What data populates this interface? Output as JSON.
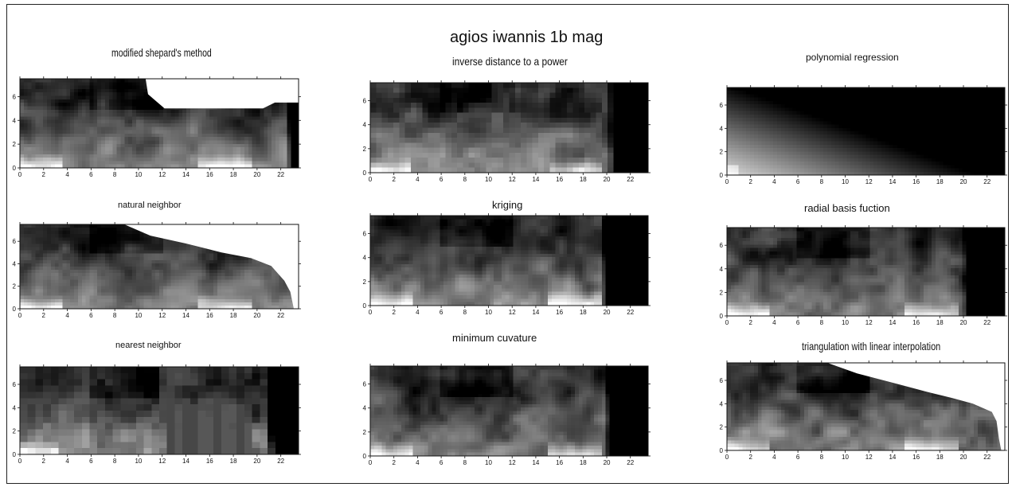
{
  "figure": {
    "title": "agios iwannis 1b mag",
    "top_text_fragment": "",
    "colors": {
      "low": "#000000",
      "high": "#ffffff",
      "text": "#111111",
      "top_fragment": "#d11a1a"
    }
  },
  "chart_data": [
    {
      "type": "heatmap",
      "id": "shepard",
      "title": "modified shepard's method",
      "xlim": [
        0,
        23.5
      ],
      "ylim": [
        0,
        7.5
      ],
      "xticks": [
        0,
        2,
        4,
        6,
        8,
        10,
        12,
        14,
        16,
        18,
        20,
        22
      ],
      "yticks": [
        0,
        2,
        4,
        6
      ],
      "blank_region": "upper-right notch (x 10.5-22, y 5-7.5) and right edge",
      "grid": false
    },
    {
      "type": "heatmap",
      "id": "idw",
      "title": "inverse distance to a power",
      "xlim": [
        0,
        23.5
      ],
      "ylim": [
        0,
        7.5
      ],
      "xticks": [
        0,
        2,
        4,
        6,
        8,
        10,
        12,
        14,
        16,
        18,
        20,
        22
      ],
      "yticks": [
        0,
        2,
        4,
        6
      ],
      "grid": false
    },
    {
      "type": "heatmap",
      "id": "polyreg",
      "title": "polynomial regression",
      "xlim": [
        0,
        23.5
      ],
      "ylim": [
        0,
        7.5
      ],
      "xticks": [
        0,
        2,
        4,
        6,
        8,
        10,
        12,
        14,
        16,
        18,
        20,
        22
      ],
      "yticks": [
        0,
        2,
        4,
        6
      ],
      "gradient": "linear, bright lower-left to dark upper-right",
      "grid": false
    },
    {
      "type": "heatmap",
      "id": "natneigh",
      "title": "natural neighbor",
      "xlim": [
        0,
        23.5
      ],
      "ylim": [
        0,
        7.5
      ],
      "xticks": [
        0,
        2,
        4,
        6,
        8,
        10,
        12,
        14,
        16,
        18,
        20,
        22
      ],
      "yticks": [
        0,
        2,
        4,
        6
      ],
      "blank_region": "upper-right triangle outside convex hull",
      "grid": false
    },
    {
      "type": "heatmap",
      "id": "kriging",
      "title": "kriging",
      "xlim": [
        0,
        23.5
      ],
      "ylim": [
        0,
        7.5
      ],
      "xticks": [
        0,
        2,
        4,
        6,
        8,
        10,
        12,
        14,
        16,
        18,
        20,
        22
      ],
      "yticks": [
        0,
        2,
        4,
        6
      ],
      "grid": false
    },
    {
      "type": "heatmap",
      "id": "rbf",
      "title": "radial basis fuction",
      "xlim": [
        0,
        23.5
      ],
      "ylim": [
        0,
        7.5
      ],
      "xticks": [
        0,
        2,
        4,
        6,
        8,
        10,
        12,
        14,
        16,
        18,
        20,
        22
      ],
      "yticks": [
        0,
        2,
        4,
        6
      ],
      "grid": false
    },
    {
      "type": "heatmap",
      "id": "nearest",
      "title": "nearest neighbor",
      "xlim": [
        0,
        23.5
      ],
      "ylim": [
        0,
        7.5
      ],
      "xticks": [
        0,
        2,
        4,
        6,
        8,
        10,
        12,
        14,
        16,
        18,
        20,
        22
      ],
      "yticks": [
        0,
        2,
        4,
        6
      ],
      "grid": false
    },
    {
      "type": "heatmap",
      "id": "mincurv",
      "title": "minimum cuvature",
      "xlim": [
        0,
        23.5
      ],
      "ylim": [
        0,
        7.5
      ],
      "xticks": [
        0,
        2,
        4,
        6,
        8,
        10,
        12,
        14,
        16,
        18,
        20,
        22
      ],
      "yticks": [
        0,
        2,
        4,
        6
      ],
      "grid": false
    },
    {
      "type": "heatmap",
      "id": "triang",
      "title": "triangulation with linear interpolation",
      "xlim": [
        0,
        23.5
      ],
      "ylim": [
        0,
        7.5
      ],
      "xticks": [
        0,
        2,
        4,
        6,
        8,
        10,
        12,
        14,
        16,
        18,
        20,
        22
      ],
      "yticks": [
        0,
        2,
        4,
        6
      ],
      "blank_region": "upper-right triangle outside convex hull",
      "grid": false
    }
  ]
}
